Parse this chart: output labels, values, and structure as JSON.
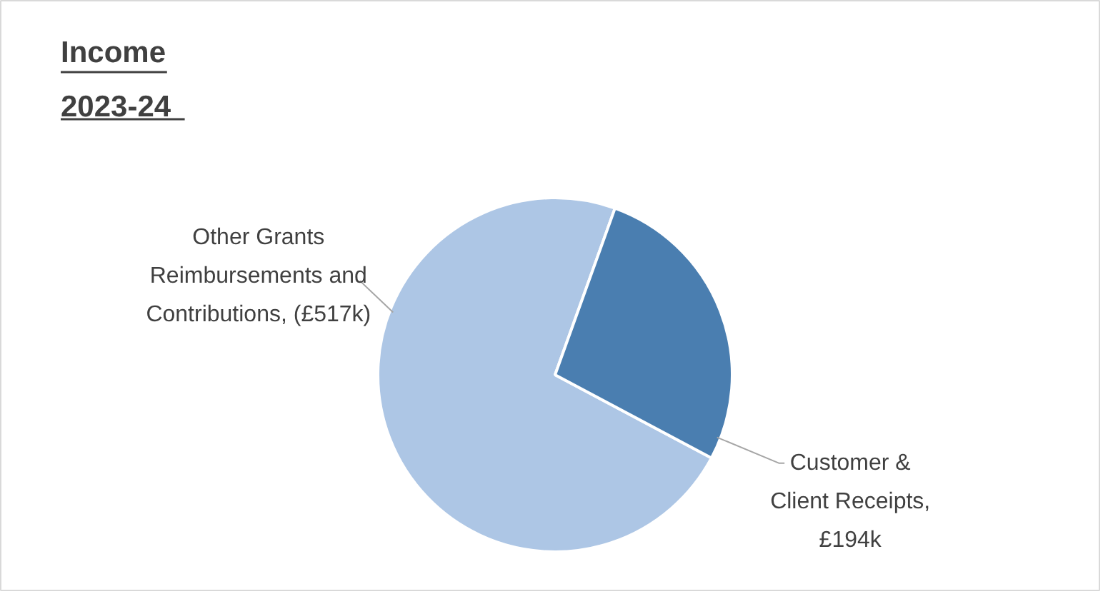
{
  "chart_data": {
    "type": "pie",
    "title": "Income 2023-24",
    "categories": [
      "Other Grants Reimbursements and Contributions, (£517k)",
      "Customer & Client Receipts, £194k"
    ],
    "values": [
      517,
      194
    ],
    "colors": [
      "#adc6e5",
      "#4a7eb0"
    ]
  }
}
